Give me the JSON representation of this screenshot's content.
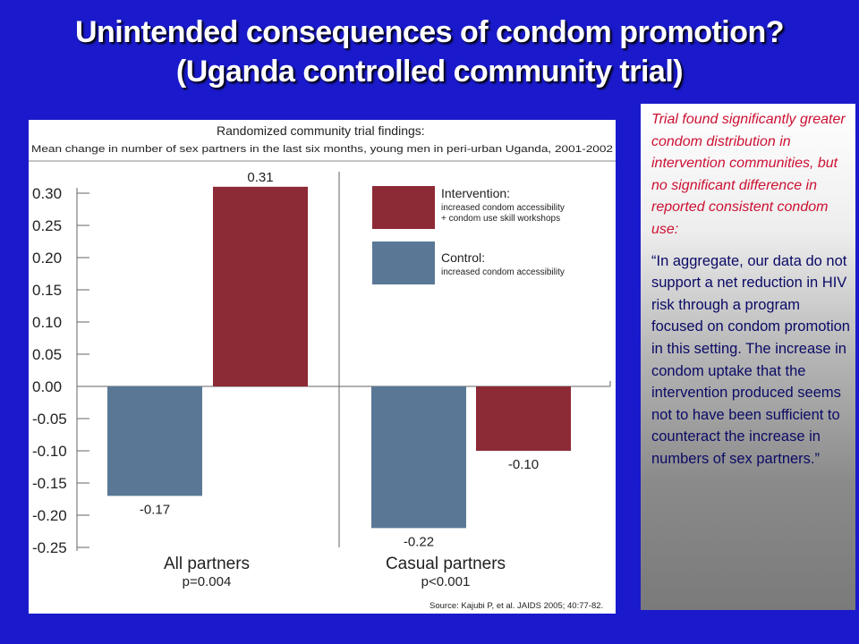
{
  "title": {
    "line1": "Unintended consequences of condom promotion?",
    "line2": "(Uganda controlled community trial)"
  },
  "note": {
    "finding": "Trial found significantly greater condom distribution in intervention communities, but no significant difference in reported consistent condom use:",
    "quote": "“In aggregate, our data do not support a net reduction in HIV risk through a program focused on condom promotion in this setting. The increase in condom uptake that the intervention produced seems not to have been sufficient to counteract the increase in numbers of sex partners.”"
  },
  "chart_data": {
    "type": "bar",
    "title": "Randomized community trial findings:",
    "subtitle": "Mean change in number of sex partners in the last six months, young men in peri-urban Uganda, 2001-2002",
    "ylim": [
      -0.25,
      0.3
    ],
    "yticks": [
      "0.30",
      "0.25",
      "0.20",
      "0.15",
      "0.10",
      "0.05",
      "0.00",
      "-0.05",
      "-0.10",
      "-0.15",
      "-0.20",
      "-0.25"
    ],
    "categories": [
      {
        "label": "All partners",
        "pvalue": "p=0.004"
      },
      {
        "label": "Casual partners",
        "pvalue": "p<0.001"
      }
    ],
    "series": [
      {
        "name": "Control:",
        "description": "increased condom accessibility",
        "color": "#5a7896",
        "values": [
          -0.17,
          -0.22
        ],
        "labels": [
          "-0.17",
          "-0.22"
        ]
      },
      {
        "name": "Intervention:",
        "description_lines": [
          "increased condom accessibility",
          "+ condom use skill workshops"
        ],
        "color": "#8c2a35",
        "values": [
          0.31,
          -0.1
        ],
        "labels": [
          "0.31",
          "-0.10"
        ]
      }
    ],
    "legend_placement": "top-right",
    "source": "Source: Kajubi P, et al. JAIDS 2005; 40:77-82."
  }
}
